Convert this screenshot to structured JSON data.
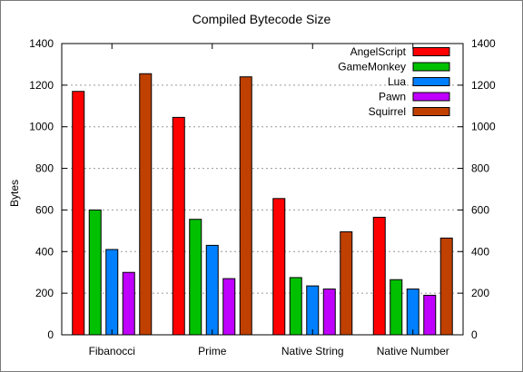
{
  "chart_data": {
    "type": "bar",
    "title": "Compiled Bytecode Size",
    "xlabel": "",
    "ylabel": "Bytes",
    "ylim": [
      0,
      1400
    ],
    "yticks": [
      0,
      200,
      400,
      600,
      800,
      1000,
      1200,
      1400
    ],
    "grid": true,
    "legend_position": "top-right",
    "categories": [
      "Fibanocci",
      "Prime",
      "Native String",
      "Native Number"
    ],
    "series": [
      {
        "name": "AngelScript",
        "color": "#ff0000",
        "values": [
          1170,
          1045,
          655,
          565
        ]
      },
      {
        "name": "GameMonkey",
        "color": "#00c000",
        "values": [
          600,
          555,
          275,
          265
        ]
      },
      {
        "name": "Lua",
        "color": "#0080ff",
        "values": [
          410,
          430,
          235,
          220
        ]
      },
      {
        "name": "Pawn",
        "color": "#c000ff",
        "values": [
          300,
          270,
          220,
          190
        ]
      },
      {
        "name": "Squirrel",
        "color": "#c04000",
        "values": [
          1255,
          1240,
          495,
          465
        ]
      }
    ]
  }
}
